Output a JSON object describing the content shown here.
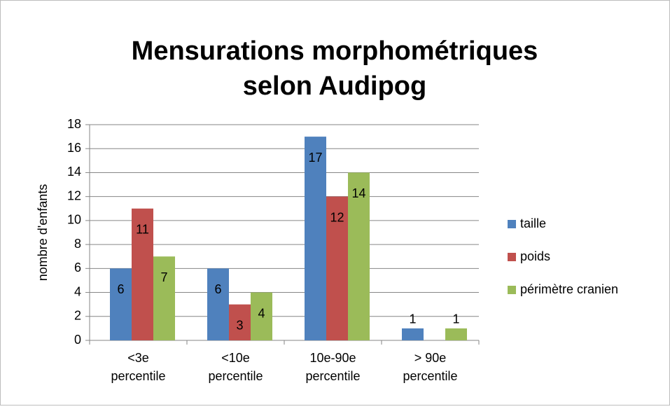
{
  "chart_data": {
    "type": "bar",
    "title": [
      "Mensurations morphométriques",
      "selon Audipog"
    ],
    "y_label": "nombre d'enfants",
    "categories": [
      "<3e percentile",
      "<10e percentile",
      "10e-90e percentile",
      "> 90e percentile"
    ],
    "series": [
      {
        "name": "taille",
        "color": "#4f81bd",
        "values": [
          6,
          6,
          17,
          1
        ]
      },
      {
        "name": "poids",
        "color": "#c0504d",
        "values": [
          11,
          3,
          12,
          null
        ]
      },
      {
        "name": "périmètre cranien",
        "color": "#9bbb59",
        "values": [
          7,
          4,
          14,
          1
        ]
      }
    ],
    "ylim": [
      0,
      18
    ],
    "yticks": [
      0,
      2,
      4,
      6,
      8,
      10,
      12,
      14,
      16,
      18
    ],
    "grid": true,
    "legend": "right"
  }
}
